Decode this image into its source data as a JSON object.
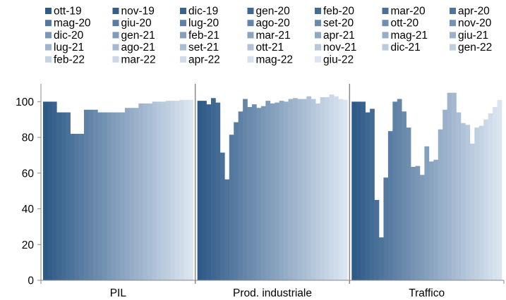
{
  "chart_data": {
    "type": "bar",
    "categories": [
      "PIL",
      "Prod. industriale",
      "Traffico"
    ],
    "ylim": [
      0,
      110
    ],
    "yticks": [
      0,
      20,
      40,
      60,
      80,
      100
    ],
    "grid": false,
    "legend_position": "top",
    "color_start": "#2e5a87",
    "color_end": "#dbe5f1",
    "series": [
      {
        "name": "ott-19",
        "values": [
          100,
          100.5,
          100
        ]
      },
      {
        "name": "nov-19",
        "values": [
          100,
          100.5,
          100
        ]
      },
      {
        "name": "dic-19",
        "values": [
          100,
          98.5,
          100
        ]
      },
      {
        "name": "gen-20",
        "values": [
          94,
          102,
          94
        ]
      },
      {
        "name": "feb-20",
        "values": [
          94,
          99.5,
          96
        ]
      },
      {
        "name": "mar-20",
        "values": [
          94,
          71.5,
          45
        ]
      },
      {
        "name": "apr-20",
        "values": [
          82,
          56.5,
          24
        ]
      },
      {
        "name": "mag-20",
        "values": [
          82,
          81.5,
          57.5
        ]
      },
      {
        "name": "giu-20",
        "values": [
          82,
          88.5,
          83.5
        ]
      },
      {
        "name": "lug-20",
        "values": [
          95.5,
          94.5,
          100
        ]
      },
      {
        "name": "ago-20",
        "values": [
          95.5,
          101.5,
          101.5
        ]
      },
      {
        "name": "set-20",
        "values": [
          95.5,
          97,
          94.5
        ]
      },
      {
        "name": "ott-20",
        "values": [
          94,
          98.5,
          85.5
        ]
      },
      {
        "name": "nov-20",
        "values": [
          94,
          96.5,
          63.5
        ]
      },
      {
        "name": "dic-20",
        "values": [
          94,
          97.5,
          64
        ]
      },
      {
        "name": "gen-21",
        "values": [
          94,
          100.5,
          59
        ]
      },
      {
        "name": "feb-21",
        "values": [
          94,
          99,
          75
        ]
      },
      {
        "name": "mar-21",
        "values": [
          94,
          99.5,
          66.5
        ]
      },
      {
        "name": "apr-21",
        "values": [
          96.5,
          100.5,
          67.5
        ]
      },
      {
        "name": "mag-21",
        "values": [
          96.5,
          100,
          84.5
        ]
      },
      {
        "name": "giu-21",
        "values": [
          96.5,
          101.5,
          95.5
        ]
      },
      {
        "name": "lug-21",
        "values": [
          99,
          102,
          105
        ]
      },
      {
        "name": "ago-21",
        "values": [
          99,
          101.5,
          105
        ]
      },
      {
        "name": "set-21",
        "values": [
          99,
          101.5,
          94
        ]
      },
      {
        "name": "ott-21",
        "values": [
          100,
          103,
          88
        ]
      },
      {
        "name": "nov-21",
        "values": [
          100,
          101.5,
          87
        ]
      },
      {
        "name": "dic-21",
        "values": [
          100,
          99,
          76.5
        ]
      },
      {
        "name": "gen-22",
        "values": [
          100.5,
          102.5,
          85.5
        ]
      },
      {
        "name": "feb-22",
        "values": [
          100.5,
          102.5,
          86.5
        ]
      },
      {
        "name": "mar-22",
        "values": [
          100.5,
          104,
          90
        ]
      },
      {
        "name": "apr-22",
        "values": [
          101,
          103,
          93.5
        ]
      },
      {
        "name": "mag-22",
        "values": [
          101,
          101.5,
          97
        ]
      },
      {
        "name": "giu-22",
        "values": [
          101,
          101,
          101
        ]
      }
    ]
  }
}
